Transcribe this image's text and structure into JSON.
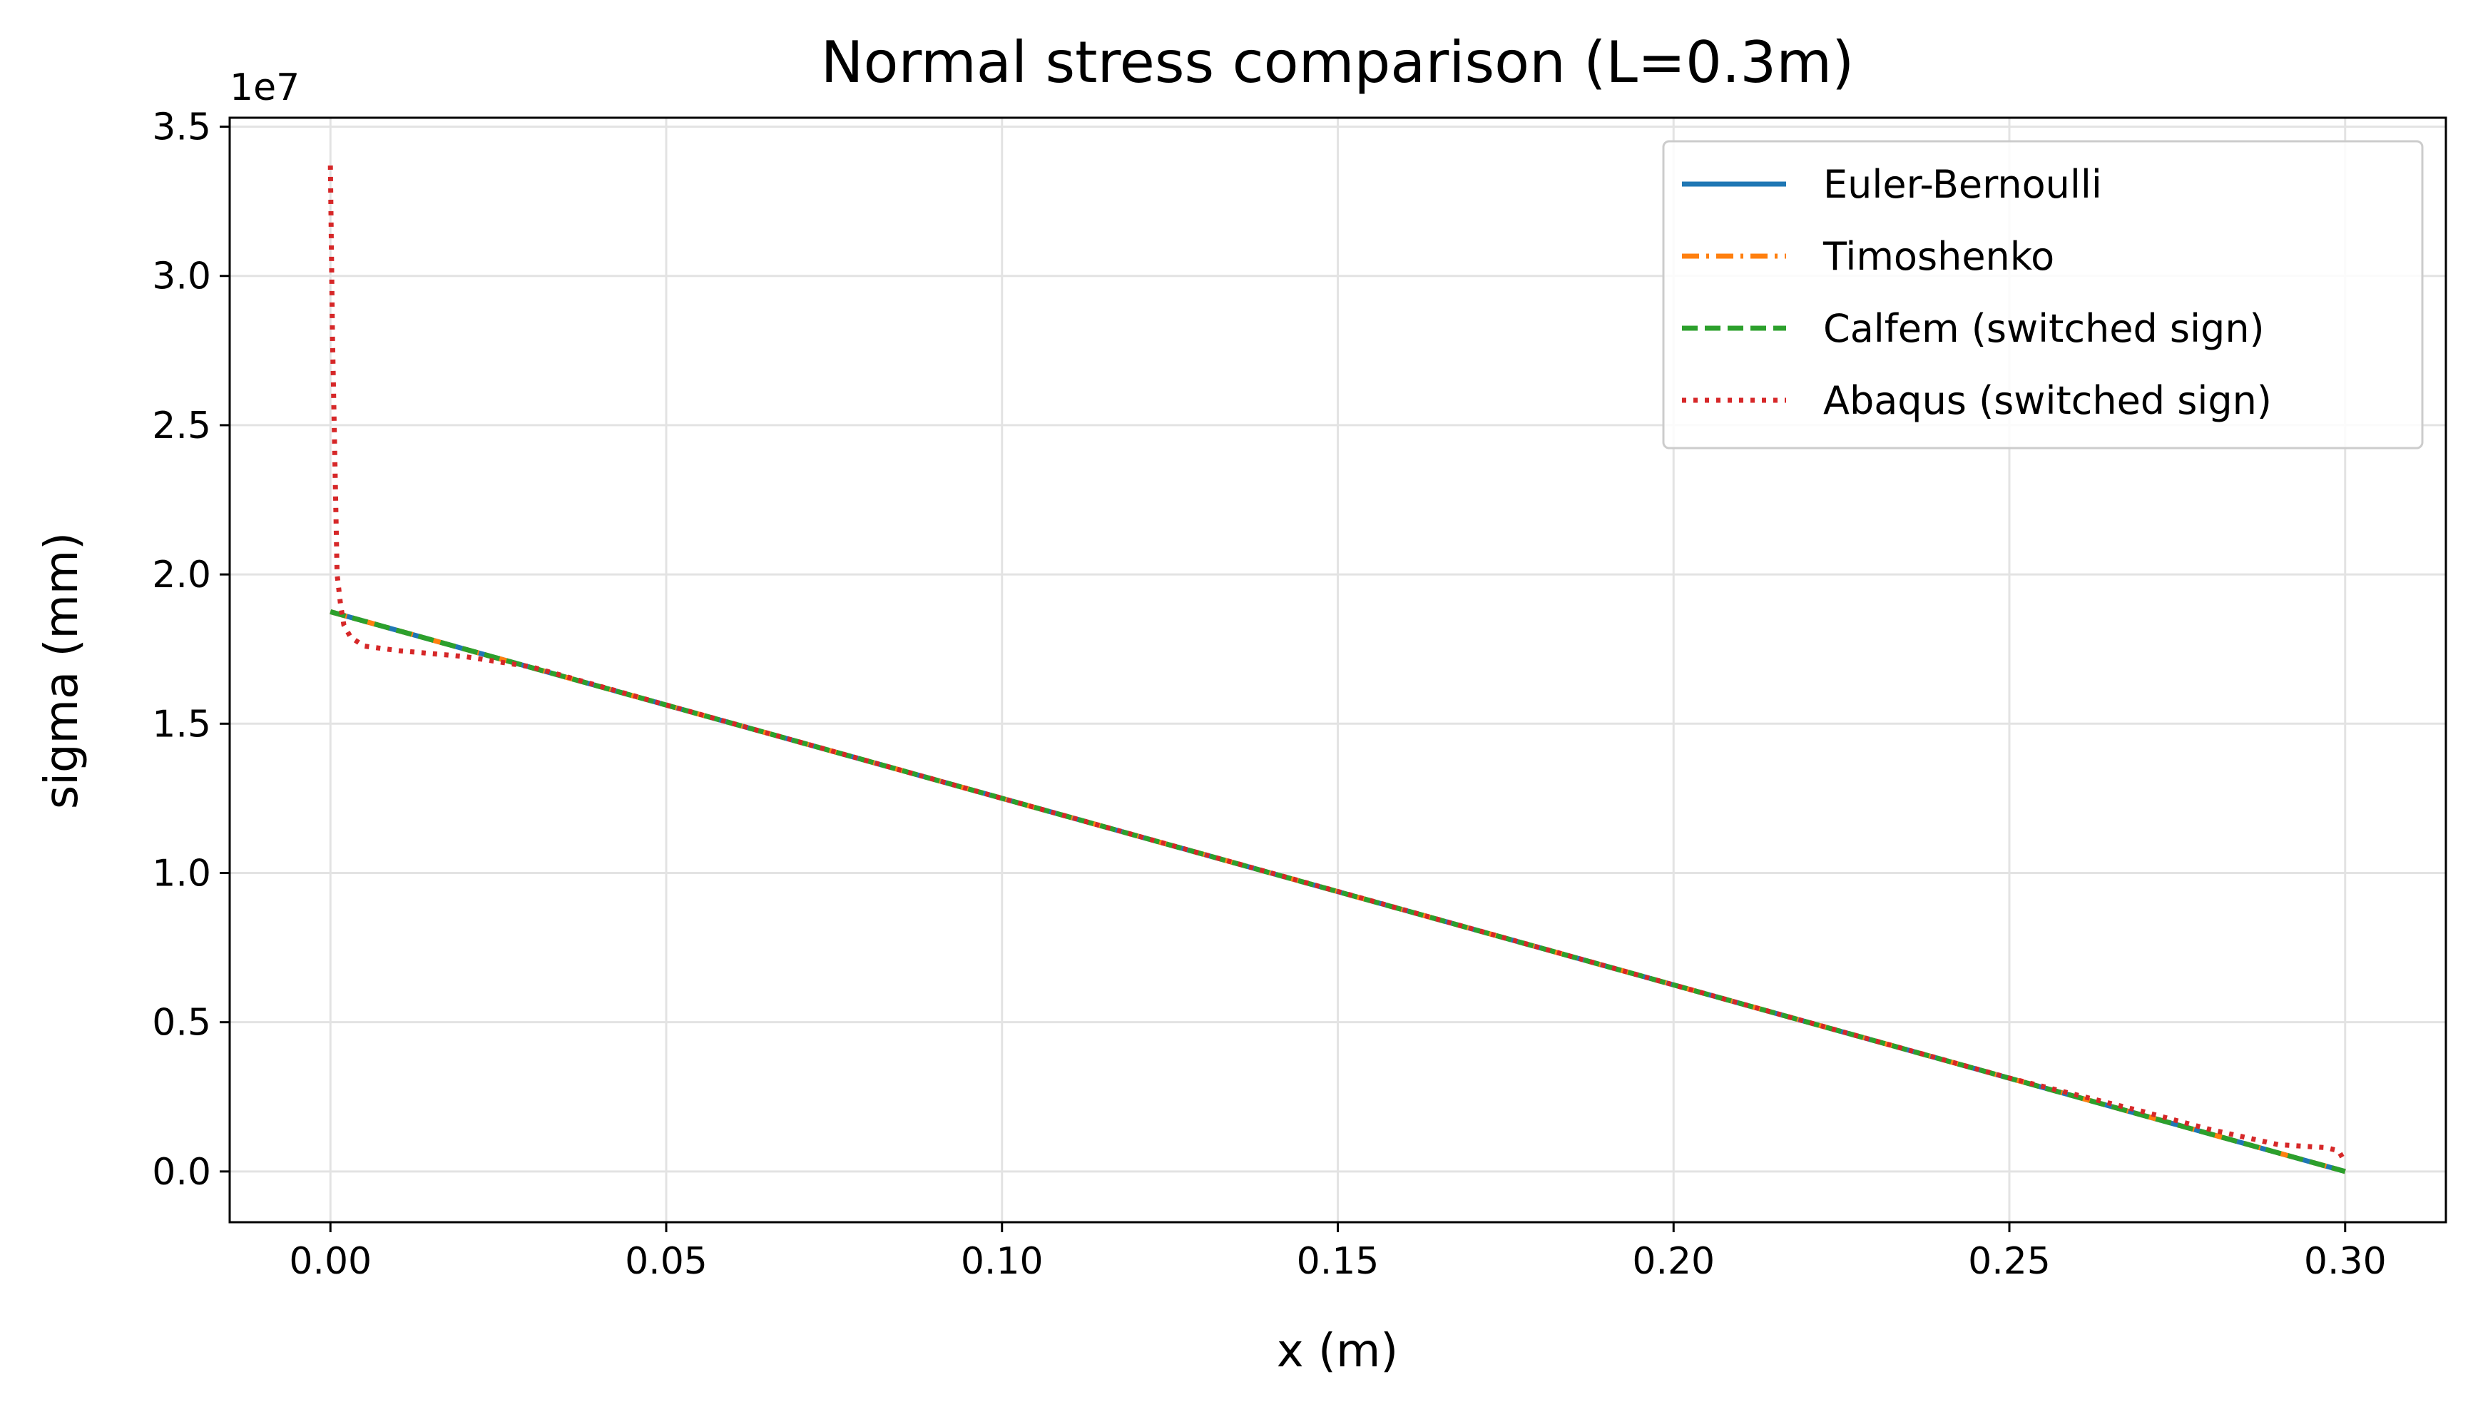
{
  "chart_data": {
    "type": "line",
    "title": "Normal stress comparison (L=0.3m)",
    "xlabel": "x (m)",
    "ylabel": "sigma (mm)",
    "y_offset_label": "1e7",
    "xlim": [
      -0.015,
      0.315
    ],
    "ylim": [
      -0.17,
      3.53
    ],
    "y_scale_factor": 10000000,
    "x_ticks": [
      0.0,
      0.05,
      0.1,
      0.15,
      0.2,
      0.25,
      0.3
    ],
    "x_tick_labels": [
      "0.00",
      "0.05",
      "0.10",
      "0.15",
      "0.20",
      "0.25",
      "0.30"
    ],
    "y_ticks": [
      0.0,
      0.5,
      1.0,
      1.5,
      2.0,
      2.5,
      3.0,
      3.5
    ],
    "y_tick_labels": [
      "0.0",
      "0.5",
      "1.0",
      "1.5",
      "2.0",
      "2.5",
      "3.0",
      "3.5"
    ],
    "grid": true,
    "legend_position": "top-right",
    "series": [
      {
        "name": "Euler-Bernoulli",
        "color": "#1f77b4",
        "style": "solid",
        "x": [
          0.0,
          0.3
        ],
        "y": [
          1.875,
          0.0
        ]
      },
      {
        "name": "Timoshenko",
        "color": "#ff7f0e",
        "style": "dashdot",
        "x": [
          0.0,
          0.3
        ],
        "y": [
          1.875,
          0.0
        ]
      },
      {
        "name": "Calfem (switched sign)",
        "color": "#2ca02c",
        "style": "dashed",
        "x": [
          0.0,
          0.3
        ],
        "y": [
          1.875,
          0.0
        ]
      },
      {
        "name": "Abaqus (switched sign)",
        "color": "#d62728",
        "style": "dotted",
        "x": [
          0.0,
          0.0003,
          0.001,
          0.0015,
          0.002,
          0.003,
          0.005,
          0.01,
          0.02,
          0.03,
          0.05,
          0.1,
          0.15,
          0.2,
          0.25,
          0.27,
          0.28,
          0.29,
          0.297,
          0.299,
          0.3
        ],
        "y": [
          3.37,
          2.8,
          2.0,
          1.9,
          1.83,
          1.79,
          1.76,
          1.745,
          1.725,
          1.69,
          1.563,
          1.25,
          0.938,
          0.625,
          0.313,
          0.2,
          0.14,
          0.09,
          0.08,
          0.07,
          0.03
        ]
      }
    ]
  }
}
